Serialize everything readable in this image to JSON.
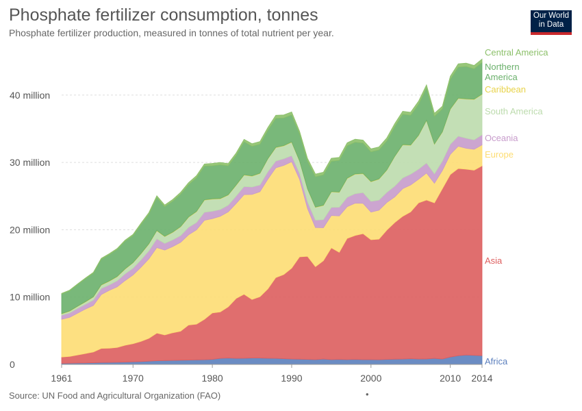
{
  "header": {
    "title": "Phosphate fertilizer consumption, tonnes",
    "subtitle": "Phosphate fertilizer production, measured in tonnes of total nutrient per year."
  },
  "logo": {
    "line1": "Our World",
    "line2": "in Data"
  },
  "footer": {
    "source": "Source: UN Food and Agricultural Organization (FAO)",
    "dot": "•"
  },
  "chart_data": {
    "type": "area",
    "stacked": true,
    "x": [
      1961,
      1962,
      1963,
      1964,
      1965,
      1966,
      1967,
      1968,
      1969,
      1970,
      1971,
      1972,
      1973,
      1974,
      1975,
      1976,
      1977,
      1978,
      1979,
      1980,
      1981,
      1982,
      1983,
      1984,
      1985,
      1986,
      1987,
      1988,
      1989,
      1990,
      1991,
      1992,
      1993,
      1994,
      1995,
      1996,
      1997,
      1998,
      1999,
      2000,
      2001,
      2002,
      2003,
      2004,
      2005,
      2006,
      2007,
      2008,
      2009,
      2010,
      2011,
      2012,
      2013,
      2014
    ],
    "xticks": [
      1961,
      1970,
      1980,
      1990,
      2000,
      2010,
      2014
    ],
    "yticks": [
      {
        "value": 0,
        "label": "0"
      },
      {
        "value": 10000000,
        "label": "10 million"
      },
      {
        "value": 20000000,
        "label": "20 million"
      },
      {
        "value": 30000000,
        "label": "30 million"
      },
      {
        "value": 40000000,
        "label": "40 million"
      }
    ],
    "xlim": [
      1961,
      2014
    ],
    "ylim": [
      0,
      47000000
    ],
    "grid": "horizontal dashed",
    "legend": "right, inline labels",
    "series": [
      {
        "name": "Africa",
        "color": "#5b7fbd",
        "values": [
          0.15,
          0.18,
          0.2,
          0.22,
          0.25,
          0.28,
          0.3,
          0.32,
          0.35,
          0.38,
          0.42,
          0.48,
          0.55,
          0.58,
          0.6,
          0.63,
          0.65,
          0.68,
          0.7,
          0.75,
          0.9,
          0.95,
          0.9,
          0.92,
          0.95,
          0.95,
          0.92,
          0.9,
          0.85,
          0.8,
          0.78,
          0.75,
          0.72,
          0.8,
          0.72,
          0.75,
          0.72,
          0.75,
          0.72,
          0.72,
          0.7,
          0.75,
          0.78,
          0.8,
          0.85,
          0.8,
          0.82,
          0.9,
          0.8,
          1.1,
          1.3,
          1.4,
          1.35,
          1.3
        ]
      },
      {
        "name": "Asia",
        "color": "#dd5e5e",
        "values": [
          0.95,
          1.0,
          1.2,
          1.4,
          1.6,
          2.1,
          2.1,
          2.2,
          2.5,
          2.7,
          3.0,
          3.4,
          4.1,
          3.8,
          4.1,
          4.3,
          5.2,
          5.3,
          6.0,
          6.9,
          6.9,
          7.6,
          8.9,
          9.5,
          8.7,
          9.1,
          10.3,
          12.0,
          12.5,
          13.5,
          15.2,
          15.3,
          13.8,
          14.6,
          16.6,
          15.9,
          18.0,
          18.4,
          18.7,
          17.8,
          17.9,
          19.2,
          20.3,
          21.2,
          21.8,
          23.2,
          23.6,
          23.1,
          25.3,
          27.1,
          27.8,
          27.6,
          27.5,
          28.2
        ]
      },
      {
        "name": "Europe",
        "color": "#fddd73",
        "values": [
          5.6,
          5.8,
          6.2,
          6.6,
          6.9,
          8.0,
          8.6,
          9.0,
          9.6,
          10.2,
          11.0,
          11.8,
          12.7,
          12.6,
          12.8,
          13.2,
          13.4,
          14.0,
          14.7,
          14.0,
          14.2,
          14.1,
          14.1,
          14.8,
          15.6,
          15.6,
          16.3,
          16.3,
          16.2,
          15.8,
          11.5,
          7.1,
          5.8,
          4.9,
          4.8,
          5.4,
          4.7,
          4.8,
          4.5,
          4.1,
          4.3,
          4.1,
          3.8,
          4.1,
          4.0,
          3.5,
          4.0,
          2.9,
          2.7,
          3.0,
          3.3,
          3.1,
          3.1,
          3.1
        ]
      },
      {
        "name": "Oceania",
        "color": "#c79bcb",
        "values": [
          0.6,
          0.65,
          0.7,
          0.7,
          0.8,
          0.9,
          0.8,
          0.9,
          1.0,
          1.0,
          1.1,
          1.2,
          1.3,
          1.0,
          1.0,
          1.0,
          1.1,
          1.1,
          1.2,
          1.1,
          1.0,
          1.0,
          1.1,
          1.2,
          1.1,
          1.0,
          1.1,
          1.0,
          1.0,
          0.9,
          0.9,
          1.0,
          1.1,
          1.2,
          1.2,
          1.3,
          1.4,
          1.4,
          1.6,
          1.6,
          1.5,
          1.5,
          1.6,
          1.6,
          1.6,
          1.5,
          1.5,
          1.4,
          1.4,
          1.5,
          1.5,
          1.5,
          1.4,
          1.5
        ]
      },
      {
        "name": "South America",
        "color": "#bcdbad",
        "values": [
          0.2,
          0.25,
          0.3,
          0.35,
          0.45,
          0.5,
          0.55,
          0.6,
          0.7,
          0.8,
          0.9,
          1.0,
          1.2,
          1.0,
          1.1,
          1.3,
          1.5,
          1.6,
          1.8,
          1.8,
          1.6,
          1.5,
          1.6,
          1.7,
          1.6,
          1.7,
          1.9,
          2.0,
          1.9,
          2.0,
          1.8,
          1.9,
          1.9,
          2.1,
          2.3,
          2.2,
          2.8,
          2.9,
          2.8,
          2.9,
          3.1,
          3.3,
          4.4,
          4.9,
          4.3,
          5.0,
          6.3,
          4.4,
          4.3,
          5.2,
          5.6,
          5.8,
          6.0,
          6.0
        ]
      },
      {
        "name": "Caribbean",
        "color": "#e8d34a",
        "values": [
          0.05,
          0.05,
          0.05,
          0.05,
          0.05,
          0.05,
          0.05,
          0.05,
          0.05,
          0.05,
          0.05,
          0.05,
          0.05,
          0.05,
          0.05,
          0.05,
          0.05,
          0.05,
          0.05,
          0.05,
          0.05,
          0.05,
          0.05,
          0.05,
          0.05,
          0.05,
          0.05,
          0.05,
          0.05,
          0.05,
          0.05,
          0.05,
          0.05,
          0.05,
          0.05,
          0.05,
          0.05,
          0.05,
          0.05,
          0.05,
          0.05,
          0.05,
          0.05,
          0.05,
          0.05,
          0.05,
          0.05,
          0.05,
          0.05,
          0.05,
          0.05,
          0.05,
          0.05,
          0.05
        ]
      },
      {
        "name": "Northern America",
        "color": "#6ab06b",
        "values": [
          2.9,
          3.0,
          3.2,
          3.4,
          3.5,
          3.8,
          3.9,
          4.0,
          4.1,
          4.0,
          4.3,
          4.4,
          4.9,
          4.4,
          4.6,
          4.8,
          4.8,
          5.0,
          5.0,
          4.9,
          5.0,
          4.3,
          4.4,
          4.9,
          4.4,
          4.3,
          4.2,
          4.3,
          4.1,
          4.0,
          4.0,
          4.1,
          4.5,
          4.5,
          4.5,
          4.7,
          4.8,
          4.7,
          4.5,
          4.4,
          4.3,
          4.3,
          4.4,
          4.5,
          4.4,
          4.6,
          4.8,
          4.1,
          3.4,
          4.4,
          4.6,
          4.8,
          4.5,
          4.7
        ]
      },
      {
        "name": "Central America",
        "color": "#8cc06a",
        "values": [
          0.1,
          0.1,
          0.1,
          0.12,
          0.12,
          0.14,
          0.15,
          0.15,
          0.16,
          0.18,
          0.2,
          0.22,
          0.25,
          0.25,
          0.25,
          0.28,
          0.3,
          0.3,
          0.32,
          0.35,
          0.35,
          0.33,
          0.35,
          0.36,
          0.38,
          0.4,
          0.42,
          0.45,
          0.45,
          0.45,
          0.4,
          0.4,
          0.4,
          0.4,
          0.45,
          0.45,
          0.45,
          0.45,
          0.45,
          0.45,
          0.45,
          0.45,
          0.45,
          0.45,
          0.45,
          0.45,
          0.45,
          0.45,
          0.4,
          0.45,
          0.5,
          0.5,
          0.5,
          0.5
        ]
      }
    ],
    "units": "million tonnes"
  }
}
